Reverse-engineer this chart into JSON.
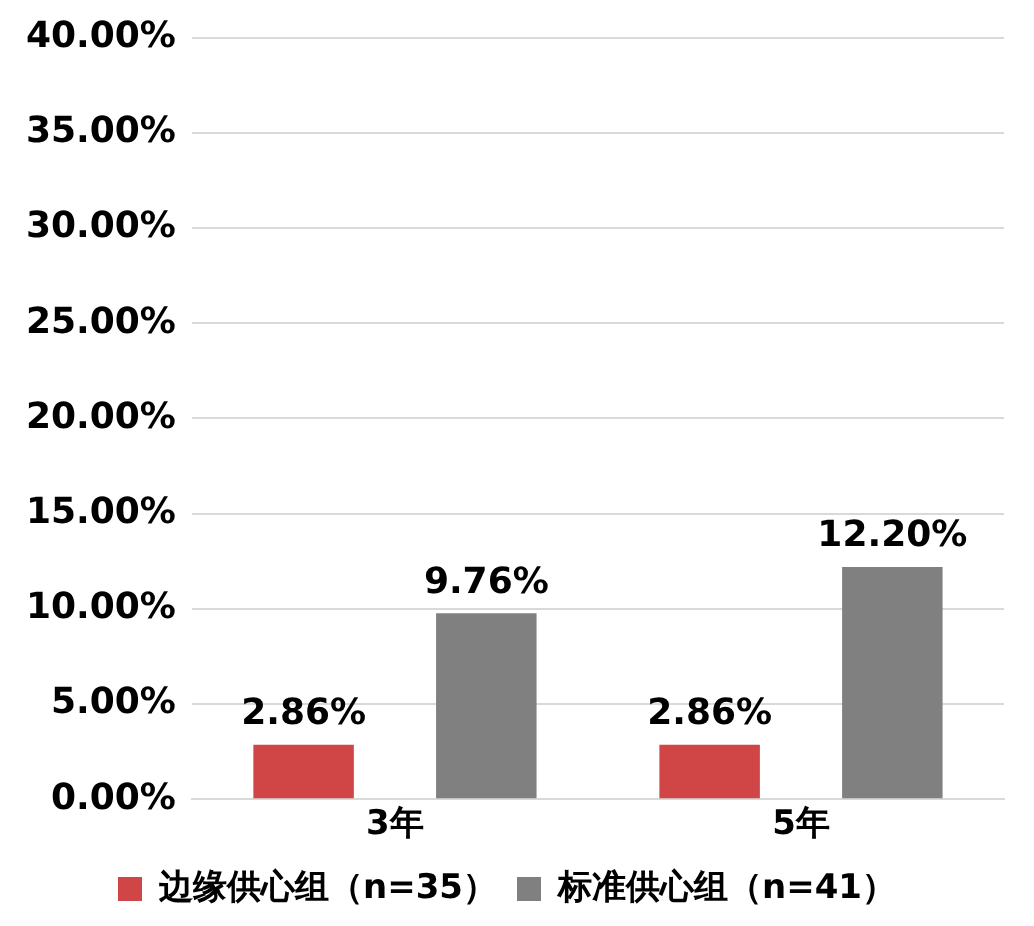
{
  "chart_data": {
    "type": "bar",
    "categories": [
      "3年",
      "5年"
    ],
    "series": [
      {
        "name": "边缘供心组（n=35）",
        "color": "#d04545",
        "values": [
          2.86,
          2.86
        ],
        "value_labels": [
          "2.86%",
          "2.86%"
        ]
      },
      {
        "name": "标准供心组（n=41）",
        "color": "#808080",
        "values": [
          9.76,
          12.2
        ],
        "value_labels": [
          "9.76%",
          "12.20%"
        ]
      }
    ],
    "ylim": [
      0,
      40
    ],
    "yticks": [
      {
        "value": 0,
        "label": "0.00%"
      },
      {
        "value": 5,
        "label": "5.00%"
      },
      {
        "value": 10,
        "label": "10.00%"
      },
      {
        "value": 15,
        "label": "15.00%"
      },
      {
        "value": 20,
        "label": "20.00%"
      },
      {
        "value": 25,
        "label": "25.00%"
      },
      {
        "value": 30,
        "label": "30.00%"
      },
      {
        "value": 35,
        "label": "35.00%"
      },
      {
        "value": 40,
        "label": "40.00%"
      }
    ],
    "grid": "y",
    "legend": "bottom"
  }
}
